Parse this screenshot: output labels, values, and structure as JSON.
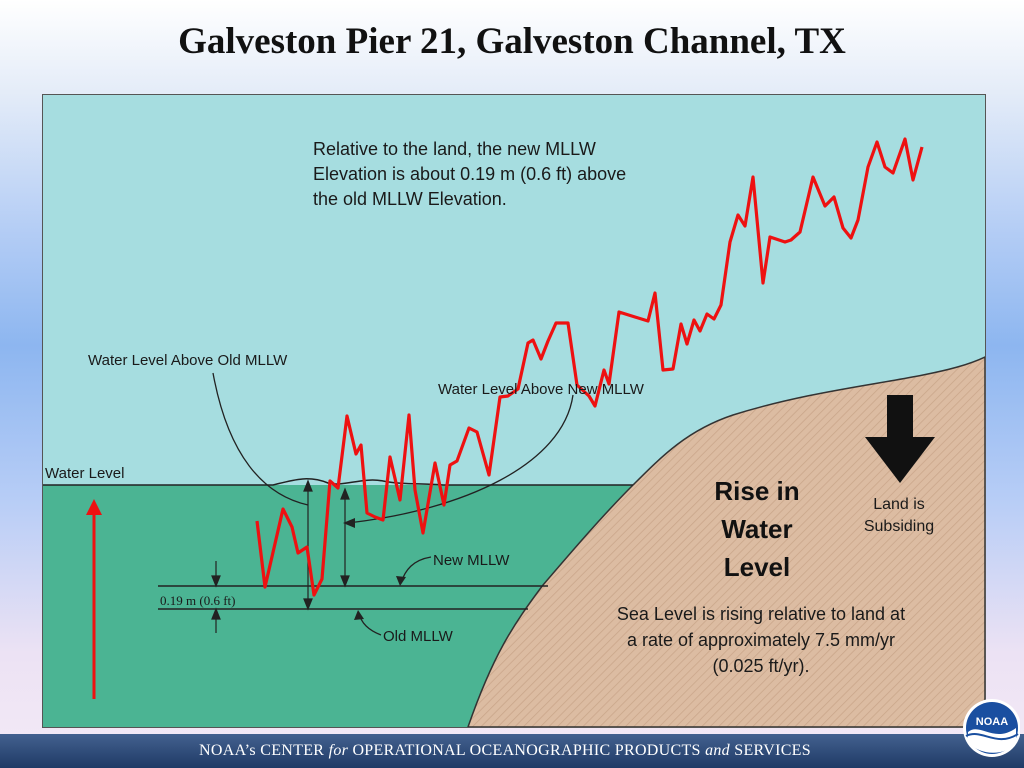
{
  "title": "Galveston Pier 21, Galveston Channel, TX",
  "annotations": {
    "relative": [
      "Relative to the land, the new MLLW",
      "Elevation is about 0.19 m (0.6 ft) above",
      "the old MLLW Elevation."
    ],
    "above_old": "Water Level Above Old MLLW",
    "above_new": "Water Level Above New MLLW",
    "water_level": "Water Level",
    "new_mllw": "New MLLW",
    "old_mllw": "Old MLLW",
    "offset": "0.19 m (0.6 ft)",
    "rise": [
      "Rise in",
      "Water",
      "Level"
    ],
    "subsiding": [
      "Land is",
      "Subsiding"
    ],
    "sea_level": [
      "Sea Level is rising relative to land at",
      "a rate of approximately 7.5 mm/yr",
      "(0.025 ft/yr)."
    ]
  },
  "footer": {
    "part1": "NOAA’s  CENTER ",
    "part2": "for",
    "part3": " OPERATIONAL  OCEANOGRAPHIC  PRODUCTS ",
    "part4": "and",
    "part5": " SERVICES"
  },
  "logo_text": "NOAA",
  "colors": {
    "sky": "#a6dde0",
    "water": "#4bb493",
    "land": "#d9b79c",
    "trend_line": "#ee1111",
    "footer": "#2a4674"
  }
}
